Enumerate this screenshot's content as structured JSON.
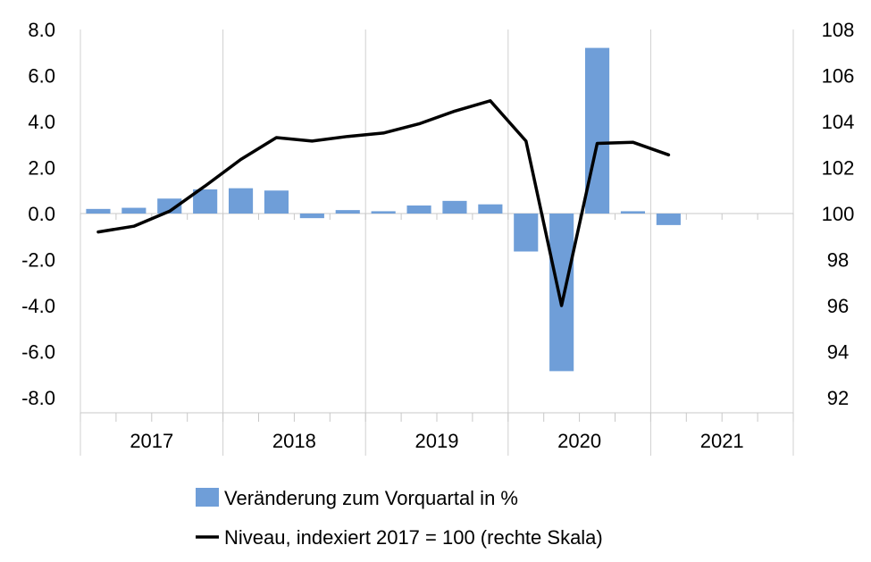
{
  "chart_data": {
    "type": "bar+line",
    "title": "",
    "quarters": [
      "2017 Q1",
      "2017 Q2",
      "2017 Q3",
      "2017 Q4",
      "2018 Q1",
      "2018 Q2",
      "2018 Q3",
      "2018 Q4",
      "2019 Q1",
      "2019 Q2",
      "2019 Q3",
      "2019 Q4",
      "2020 Q1",
      "2020 Q2",
      "2020 Q3",
      "2020 Q4",
      "2021 Q1",
      "2021 Q2",
      "2021 Q3",
      "2021 Q4"
    ],
    "year_labels": [
      "2017",
      "2018",
      "2019",
      "2020",
      "2021"
    ],
    "left_axis": {
      "ylim": [
        -8.0,
        8.0
      ],
      "ticks": [
        "8.0",
        "6.0",
        "4.0",
        "2.0",
        "0.0",
        "-2.0",
        "-4.0",
        "-6.0",
        "-8.0"
      ]
    },
    "right_axis": {
      "ylim": [
        92,
        108
      ],
      "ticks": [
        "108",
        "106",
        "104",
        "102",
        "100",
        "98",
        "96",
        "94",
        "92"
      ]
    },
    "series": [
      {
        "name": "Veränderung zum Vorquartal in %",
        "type": "bar",
        "axis": "left",
        "color": "#6f9ed8",
        "values": [
          0.2,
          0.25,
          0.65,
          1.05,
          1.1,
          1.0,
          -0.2,
          0.15,
          0.1,
          0.35,
          0.55,
          0.4,
          -1.65,
          -6.85,
          7.2,
          0.1,
          -0.5,
          null,
          null,
          null
        ]
      },
      {
        "name": "Niveau, indexiert 2017 = 100 (rechte Skala)",
        "type": "line",
        "axis": "right",
        "color": "#000000",
        "values": [
          99.2,
          99.45,
          100.1,
          101.2,
          102.35,
          103.3,
          103.15,
          103.35,
          103.5,
          103.9,
          104.45,
          104.9,
          103.15,
          96.0,
          103.05,
          103.1,
          102.55,
          null,
          null,
          null
        ]
      }
    ],
    "grid": "vertical",
    "legend_position": "bottom"
  }
}
